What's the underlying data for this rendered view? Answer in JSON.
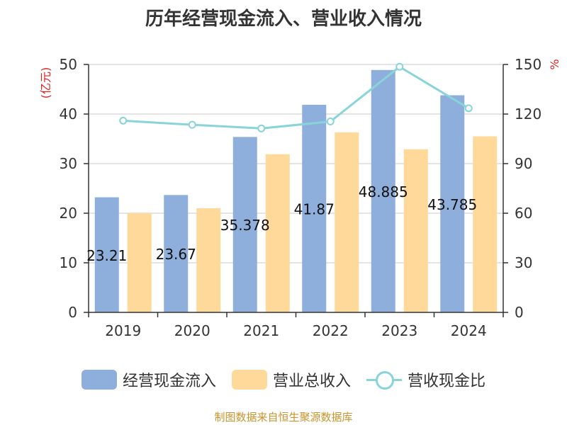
{
  "chart_data": {
    "type": "bar",
    "title": "历年经营现金流入、营业收入情况",
    "categories": [
      "2019",
      "2020",
      "2021",
      "2022",
      "2023",
      "2024"
    ],
    "series": [
      {
        "name": "经营现金流入",
        "axis": "left",
        "color": "#8eaedb",
        "values": [
          23.21,
          23.67,
          35.378,
          41.872,
          48.885,
          43.785
        ],
        "labels": [
          "23.21",
          "23.67",
          "35.378",
          "41.87",
          "48.885",
          "43.785"
        ]
      },
      {
        "name": "营业总收入",
        "axis": "left",
        "color": "#ffd99a",
        "values": [
          20.0,
          21.0,
          31.9,
          36.3,
          32.9,
          35.5
        ]
      },
      {
        "name": "营收现金比",
        "axis": "right",
        "type": "line",
        "color": "#88d4d8",
        "values": [
          116,
          113.5,
          111.3,
          115.5,
          148.6,
          123.5
        ]
      }
    ],
    "y_left": {
      "label": "(亿元)",
      "ylim": [
        0,
        50
      ],
      "ticks": [
        "0",
        "10",
        "20",
        "30",
        "40",
        "50"
      ]
    },
    "y_right": {
      "label": "%",
      "ylim": [
        0,
        150
      ],
      "ticks": [
        "0",
        "30",
        "60",
        "90",
        "120",
        "150"
      ]
    },
    "grid": true,
    "legend_position": "bottom"
  },
  "source": "制图数据来自恒生聚源数据库"
}
